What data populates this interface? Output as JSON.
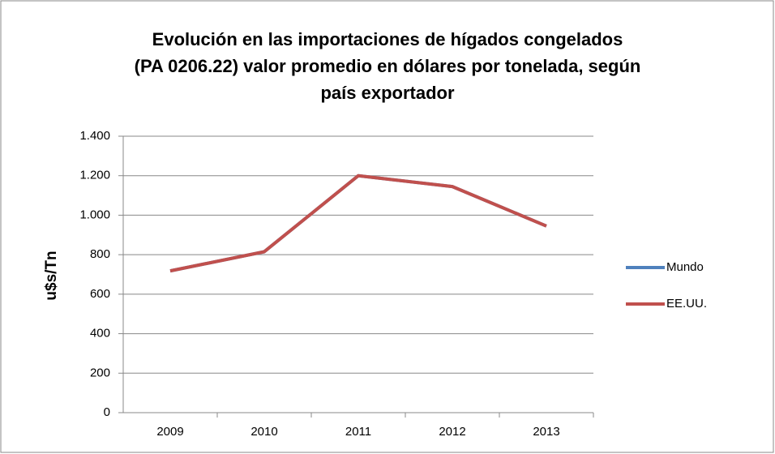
{
  "chart_data": {
    "type": "line",
    "title": [
      "Evolución en las importaciones de hígados congelados",
      "(PA 0206.22) valor promedio en dólares por tonelada, según",
      "país exportador"
    ],
    "y_label": "u$s/Tn",
    "categories": [
      "2009",
      "2010",
      "2011",
      "2012",
      "2013"
    ],
    "series": [
      {
        "name": "Mundo",
        "color": "#4f81bd",
        "values": [
          718,
          815,
          1200,
          1145,
          945
        ]
      },
      {
        "name": "EE.UU.",
        "color": "#c0504d",
        "values": [
          718,
          815,
          1200,
          1145,
          945
        ]
      }
    ],
    "ylim": [
      0,
      1400
    ],
    "yticks": [
      0,
      200,
      400,
      600,
      800,
      {
        "value": 1000,
        "label": "1.000"
      },
      {
        "value": 1200,
        "label": "1.200"
      },
      {
        "value": 1400,
        "label": "1.400"
      }
    ],
    "grid": true,
    "legend": "right"
  }
}
